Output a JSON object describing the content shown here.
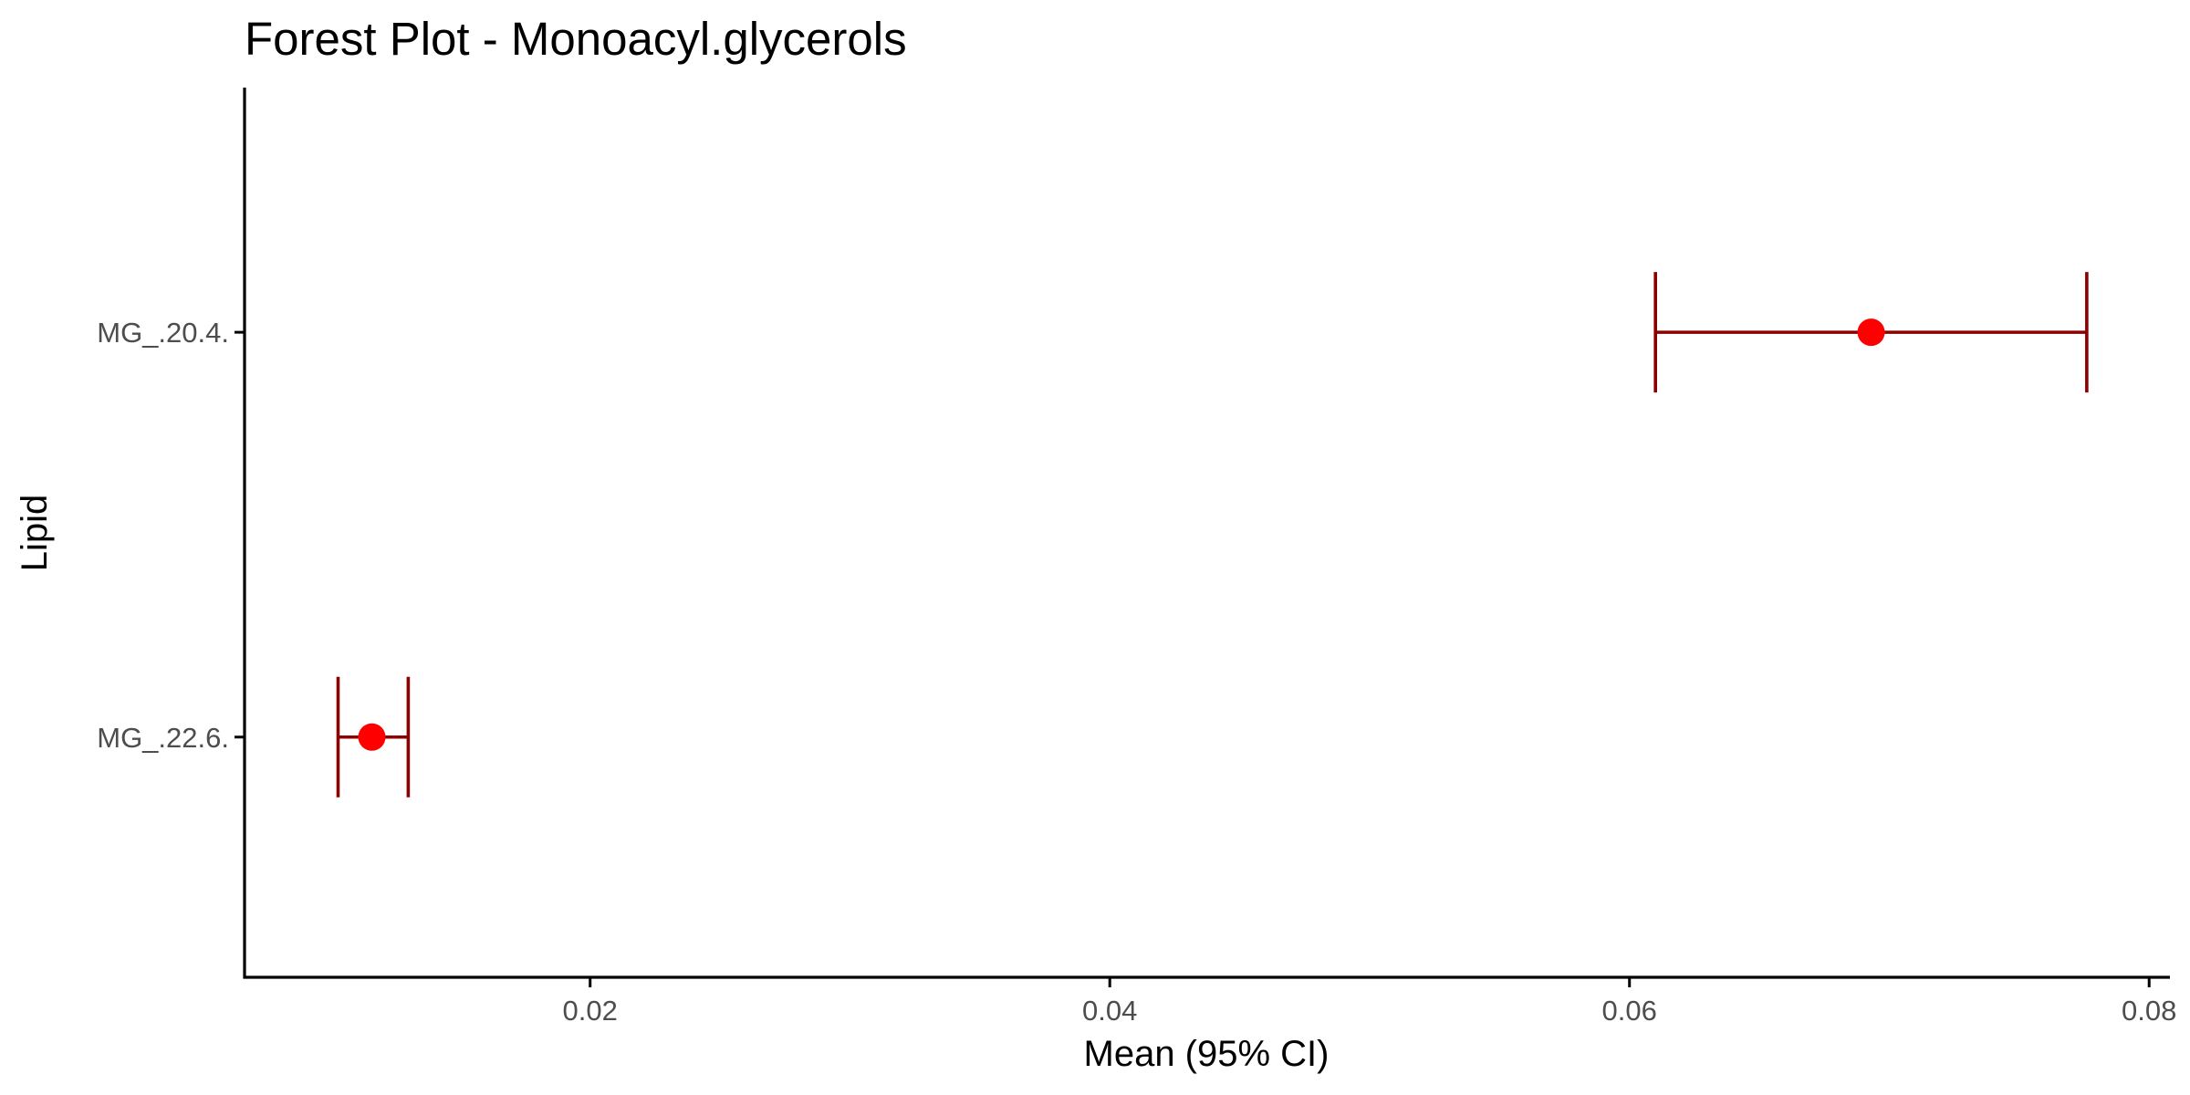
{
  "chart_data": {
    "type": "scatter",
    "subtype": "forest-plot",
    "title": "Forest Plot - Monoacyl.glycerols",
    "xlabel": "Mean (95% CI)",
    "ylabel": "Lipid",
    "xlim": [
      0.0067,
      0.0808
    ],
    "x_ticks": [
      {
        "value": 0.02,
        "label": "0.02"
      },
      {
        "value": 0.04,
        "label": "0.04"
      },
      {
        "value": 0.06,
        "label": "0.06"
      },
      {
        "value": 0.08,
        "label": "0.08"
      }
    ],
    "categories": [
      "MG_.22.6.",
      "MG_.20.4."
    ],
    "series": [
      {
        "points": [
          {
            "category": "MG_.22.6.",
            "mean": 0.0116,
            "lower": 0.0103,
            "upper": 0.013
          },
          {
            "category": "MG_.20.4.",
            "mean": 0.0693,
            "lower": 0.061,
            "upper": 0.0776
          }
        ]
      }
    ],
    "grid": false,
    "legend": "none",
    "colors": {
      "point": "#ff0000",
      "errorbar": "#8b0000",
      "axis": "#000000",
      "tick_label": "#4d4d4d"
    }
  }
}
